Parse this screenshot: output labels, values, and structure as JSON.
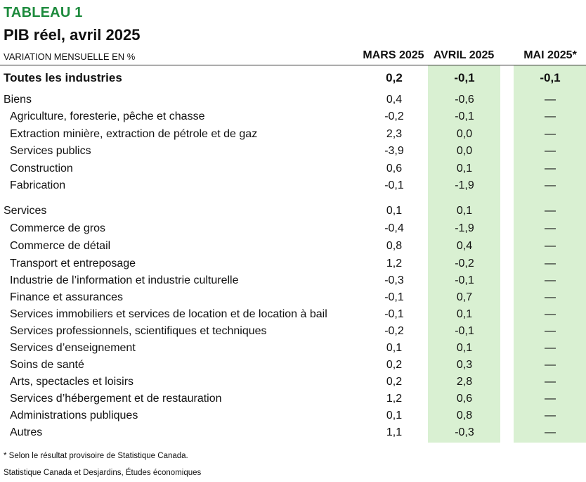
{
  "header": {
    "title": "TABLEAU 1",
    "subtitle": "PIB réel, avril 2025",
    "unit_label": "VARIATION MENSUELLE EN %",
    "columns": [
      "MARS 2025",
      "AVRIL 2025",
      "MAI 2025*"
    ]
  },
  "rows": [
    {
      "label": "Toutes les industries",
      "mar": "0,2",
      "apr": "-0,1",
      "may": "-0,1"
    },
    {
      "label": "Biens",
      "mar": "0,4",
      "apr": "-0,6",
      "may": "—"
    },
    {
      "label": "Agriculture, foresterie, pêche et chasse",
      "mar": "-0,2",
      "apr": "-0,1",
      "may": "—"
    },
    {
      "label": "Extraction minière, extraction de pétrole et de gaz",
      "mar": "2,3",
      "apr": "0,0",
      "may": "—"
    },
    {
      "label": "Services publics",
      "mar": "-3,9",
      "apr": "0,0",
      "may": "—"
    },
    {
      "label": "Construction",
      "mar": "0,6",
      "apr": "0,1",
      "may": "—"
    },
    {
      "label": "Fabrication",
      "mar": "-0,1",
      "apr": "-1,9",
      "may": "—"
    },
    {
      "label": "Services",
      "mar": "0,1",
      "apr": "0,1",
      "may": "—"
    },
    {
      "label": "Commerce de gros",
      "mar": "-0,4",
      "apr": "-1,9",
      "may": "—"
    },
    {
      "label": "Commerce de détail",
      "mar": "0,8",
      "apr": "0,4",
      "may": "—"
    },
    {
      "label": "Transport et entreposage",
      "mar": "1,2",
      "apr": "-0,2",
      "may": "—"
    },
    {
      "label": "Industrie de l’information et industrie culturelle",
      "mar": "-0,3",
      "apr": "-0,1",
      "may": "—"
    },
    {
      "label": "Finance et assurances",
      "mar": "-0,1",
      "apr": "0,7",
      "may": "—"
    },
    {
      "label": "Services immobiliers et services de location et de location à bail",
      "mar": "-0,1",
      "apr": "0,1",
      "may": "—"
    },
    {
      "label": "Services professionnels, scientifiques et techniques",
      "mar": "-0,2",
      "apr": "-0,1",
      "may": "—"
    },
    {
      "label": "Services d’enseignement",
      "mar": "0,1",
      "apr": "0,1",
      "may": "—"
    },
    {
      "label": "Soins de santé",
      "mar": "0,2",
      "apr": "0,3",
      "may": "—"
    },
    {
      "label": "Arts, spectacles et loisirs",
      "mar": "0,2",
      "apr": "2,8",
      "may": "—"
    },
    {
      "label": "Services d’hébergement et de restauration",
      "mar": "1,2",
      "apr": "0,6",
      "may": "—"
    },
    {
      "label": "Administrations publiques",
      "mar": "0,1",
      "apr": "0,8",
      "may": "—"
    },
    {
      "label": "Autres",
      "mar": "1,1",
      "apr": "-0,3",
      "may": "—"
    }
  ],
  "footnotes": {
    "provisional": "* Selon le résultat provisoire de Statistique Canada.",
    "source": "Statistique Canada et Desjardins, Études économiques"
  },
  "colors": {
    "title": "#1c8a3c",
    "highlight_band": "#d9f0d2"
  }
}
